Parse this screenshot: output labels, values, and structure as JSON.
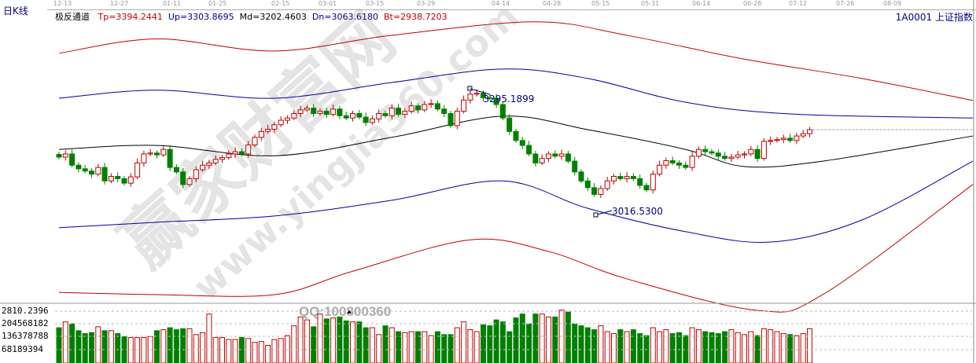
{
  "header": {
    "period": "日K线",
    "indicator": "极反通道",
    "symbol": "1A0001 上证指数"
  },
  "legend": [
    {
      "text": "Tp=3394.2441",
      "color": "#c00000"
    },
    {
      "text": "Up=3303.8695",
      "color": "#000080"
    },
    {
      "text": "Md=3202.4603",
      "color": "#000000"
    },
    {
      "text": "Dn=3063.6180",
      "color": "#000080"
    },
    {
      "text": "Bt=2938.7203",
      "color": "#c00000"
    }
  ],
  "watermark": {
    "brand": "赢家财富网",
    "url": "www.yingjia360.com",
    "qq": "QQ:100800360"
  },
  "colors": {
    "up": "#c00000",
    "down": "#008000",
    "channel_outer": "#c00000",
    "channel_inner": "#0000a0",
    "mid": "#000000"
  },
  "chart_data": {
    "type": "candlestick",
    "x_ticks": [
      "12-13",
      "12-27",
      "01-11",
      "01-25",
      "02-15",
      "03-01",
      "03-15",
      "03-29",
      "04-14",
      "04-28",
      "05-15",
      "05-31",
      "06-14",
      "06-28",
      "07-12",
      "07-26",
      "08-09"
    ],
    "annotations": {
      "high": "3295.1899",
      "low": "3016.5300"
    },
    "close": [
      3143,
      3150,
      3125,
      3117,
      3112,
      3105,
      3120,
      3090,
      3100,
      3095,
      3085,
      3099,
      3130,
      3150,
      3152,
      3148,
      3160,
      3120,
      3110,
      3082,
      3095,
      3115,
      3125,
      3130,
      3138,
      3142,
      3150,
      3155,
      3150,
      3170,
      3187,
      3200,
      3205,
      3215,
      3225,
      3230,
      3240,
      3248,
      3252,
      3240,
      3245,
      3238,
      3250,
      3235,
      3230,
      3240,
      3232,
      3220,
      3228,
      3240,
      3235,
      3252,
      3238,
      3245,
      3257,
      3248,
      3260,
      3262,
      3250,
      3240,
      3213,
      3245,
      3270,
      3283,
      3285,
      3275,
      3274,
      3260,
      3230,
      3200,
      3180,
      3169,
      3150,
      3130,
      3140,
      3150,
      3145,
      3150,
      3134,
      3110,
      3090,
      3075,
      3060,
      3073,
      3090,
      3100,
      3095,
      3100,
      3095,
      3080,
      3070,
      3105,
      3125,
      3135,
      3130,
      3125,
      3120,
      3145,
      3160,
      3155,
      3152,
      3145,
      3140,
      3143,
      3148,
      3150,
      3160,
      3140,
      3178,
      3180,
      3182,
      3185,
      3180,
      3190,
      3195,
      3204
    ],
    "volume": [
      180000000.0,
      210000000.0,
      200000000.0,
      165000000.0,
      150000000.0,
      155000000.0,
      185000000.0,
      165000000.0,
      165000000.0,
      150000000.0,
      135000000.0,
      130000000.0,
      130000000.0,
      130000000.0,
      135000000.0,
      165000000.0,
      170000000.0,
      180000000.0,
      170000000.0,
      175000000.0,
      175000000.0,
      145000000.0,
      155000000.0,
      250000000.0,
      130000000.0,
      130000000.0,
      120000000.0,
      120000000.0,
      130000000.0,
      125000000.0,
      105000000.0,
      110000000.0,
      90000000.0,
      120000000.0,
      125000000.0,
      140000000.0,
      190000000.0,
      235000000.0,
      220000000.0,
      185000000.0,
      250000000.0,
      225000000.0,
      230000000.0,
      235000000.0,
      215000000.0,
      210000000.0,
      210000000.0,
      180000000.0,
      180000000.0,
      145000000.0,
      190000000.0,
      180000000.0,
      160000000.0,
      155000000.0,
      160000000.0,
      160000000.0,
      160000000.0,
      140000000.0,
      160000000.0,
      145000000.0,
      145000000.0,
      180000000.0,
      210000000.0,
      170000000.0,
      160000000.0,
      195000000.0,
      190000000.0,
      220000000.0,
      210000000.0,
      160000000.0,
      230000000.0,
      250000000.0,
      200000000.0,
      250000000.0,
      250000000.0,
      235000000.0,
      235000000.0,
      270000000.0,
      260000000.0,
      200000000.0,
      190000000.0,
      180000000.0,
      170000000.0,
      190000000.0,
      160000000.0,
      150000000.0,
      170000000.0,
      160000000.0,
      170000000.0,
      150000000.0,
      140000000.0,
      180000000.0,
      160000000.0,
      170000000.0,
      150000000.0,
      155000000.0,
      140000000.0,
      180000000.0,
      170000000.0,
      160000000.0,
      155000000.0,
      150000000.0,
      160000000.0,
      170000000.0,
      155000000.0,
      145000000.0,
      160000000.0,
      140000000.0,
      175000000.0,
      170000000.0,
      160000000.0,
      150000000.0,
      145000000.0,
      140000000.0,
      150000000.0,
      175000000.0
    ],
    "volume_ticks": [
      "2810.2396",
      "204568182",
      "136378788",
      "68189394"
    ],
    "channels": {
      "Tp": {
        "idx": [
          0,
          15,
          33,
          51,
          73,
          87,
          105,
          123,
          140
        ],
        "value": [
          3374,
          3406,
          3379,
          3414,
          3444,
          3414,
          3361,
          3318,
          3269
        ]
      },
      "Up": {
        "idx": [
          0,
          15,
          33,
          51,
          68,
          81,
          96,
          112,
          140
        ],
        "value": [
          3274,
          3292,
          3274,
          3309,
          3339,
          3318,
          3265,
          3239,
          3230
        ]
      },
      "Md": {
        "idx": [
          0,
          15,
          33,
          51,
          68,
          81,
          96,
          105,
          117,
          140
        ],
        "value": [
          3160,
          3169,
          3146,
          3187,
          3234,
          3204,
          3160,
          3122,
          3134,
          3190
        ]
      },
      "Dn": {
        "idx": [
          0,
          15,
          33,
          51,
          68,
          81,
          96,
          109,
          123,
          140
        ],
        "value": [
          2986,
          2998,
          3012,
          3047,
          3090,
          3029,
          2977,
          2954,
          3003,
          3134
        ]
      },
      "Bt": {
        "idx": [
          0,
          15,
          33,
          45,
          63,
          75,
          87,
          107,
          117,
          140
        ],
        "value": [
          2842,
          2837,
          2837,
          2889,
          2959,
          2933,
          2872,
          2802,
          2837,
          3082
        ]
      }
    }
  }
}
